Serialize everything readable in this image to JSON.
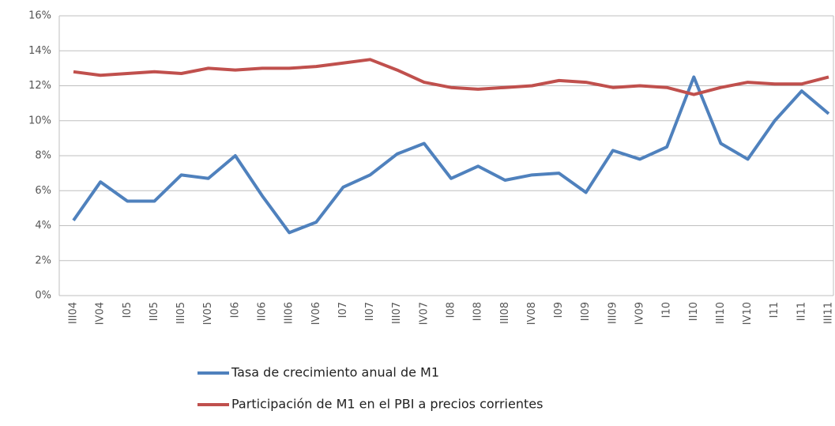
{
  "chart_data": {
    "type": "line",
    "categories": [
      "III04",
      "IV04",
      "I05",
      "II05",
      "III05",
      "IV05",
      "I06",
      "II06",
      "III06",
      "IV06",
      "I07",
      "II07",
      "III07",
      "IV07",
      "I08",
      "II08",
      "III08",
      "IV08",
      "I09",
      "II09",
      "III09",
      "IV09",
      "I10",
      "II10",
      "III10",
      "IV10",
      "I11",
      "II11",
      "III11"
    ],
    "series": [
      {
        "name": "Tasa de crecimiento anual de M1",
        "color": "#4f81bd",
        "values": [
          4.3,
          6.5,
          5.4,
          5.4,
          6.9,
          6.7,
          8.0,
          5.7,
          3.6,
          4.2,
          6.2,
          6.9,
          8.1,
          8.7,
          6.7,
          7.4,
          6.6,
          6.9,
          7.0,
          5.9,
          8.3,
          7.8,
          8.5,
          12.5,
          8.7,
          7.8,
          10.0,
          11.7,
          10.4
        ]
      },
      {
        "name": "Participación de M1 en el PBI a precios corrientes",
        "color": "#c0504d",
        "values": [
          12.8,
          12.6,
          12.7,
          12.8,
          12.7,
          13.0,
          12.9,
          13.0,
          13.0,
          13.1,
          13.3,
          13.5,
          12.9,
          12.2,
          11.9,
          11.8,
          11.9,
          12.0,
          12.3,
          12.2,
          11.9,
          12.0,
          11.9,
          11.5,
          11.9,
          12.2,
          12.1,
          12.1,
          12.5
        ]
      }
    ],
    "ylim": [
      0,
      16
    ],
    "yticks": [
      {
        "value": 0,
        "label": "0%"
      },
      {
        "value": 2,
        "label": "2%"
      },
      {
        "value": 4,
        "label": "4%"
      },
      {
        "value": 6,
        "label": "6%"
      },
      {
        "value": 8,
        "label": "8%"
      },
      {
        "value": 10,
        "label": "10%"
      },
      {
        "value": 12,
        "label": "12%"
      },
      {
        "value": 14,
        "label": "14%"
      },
      {
        "value": 16,
        "label": "16%"
      }
    ],
    "grid": true,
    "legend": "bottom"
  }
}
